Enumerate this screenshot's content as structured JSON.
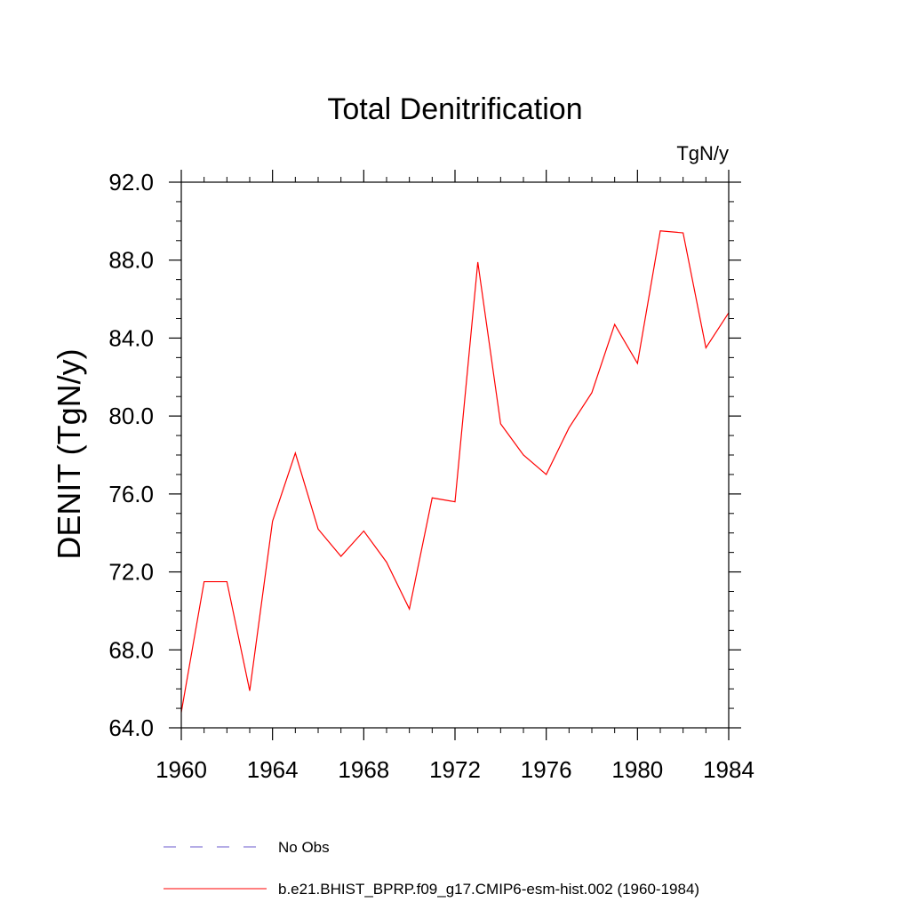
{
  "chart_data": {
    "type": "line",
    "title": "Total Denitrification",
    "units_label": "TgN/y",
    "ylabel": "DENIT  (TgN/y)",
    "xlabel": "",
    "xlim": [
      1960,
      1984
    ],
    "ylim": [
      64,
      92
    ],
    "x_ticks": [
      1960,
      1964,
      1968,
      1972,
      1976,
      1980,
      1984
    ],
    "x_tick_labels": [
      "1960",
      "1964",
      "1968",
      "1972",
      "1976",
      "1980",
      "1984"
    ],
    "y_ticks": [
      64,
      68,
      72,
      76,
      80,
      84,
      88,
      92
    ],
    "y_tick_labels": [
      "64.0",
      "68.0",
      "72.0",
      "76.0",
      "80.0",
      "84.0",
      "88.0",
      "92.0"
    ],
    "grid": false,
    "legend_position": "bottom",
    "series": [
      {
        "name": "b.e21.BHIST_BPRP.f09_g17.CMIP6-esm-hist.002 (1960-1984)",
        "color": "#ff0000",
        "style": "solid",
        "x": [
          1960,
          1961,
          1962,
          1963,
          1964,
          1965,
          1966,
          1967,
          1968,
          1969,
          1970,
          1971,
          1972,
          1973,
          1974,
          1975,
          1976,
          1977,
          1978,
          1979,
          1980,
          1981,
          1982,
          1983,
          1984
        ],
        "y": [
          64.8,
          71.5,
          71.5,
          65.9,
          74.6,
          78.1,
          74.2,
          72.8,
          74.1,
          72.5,
          70.1,
          75.8,
          75.6,
          87.9,
          79.6,
          78.0,
          77.0,
          79.4,
          81.2,
          84.7,
          82.7,
          89.5,
          89.4,
          83.5,
          85.3
        ]
      }
    ],
    "legend": [
      {
        "label": "No Obs",
        "color": "#6a5acd",
        "style": "dashed"
      },
      {
        "label": "b.e21.BHIST_BPRP.f09_g17.CMIP6-esm-hist.002 (1960-1984)",
        "color": "#ff0000",
        "style": "solid"
      }
    ]
  }
}
